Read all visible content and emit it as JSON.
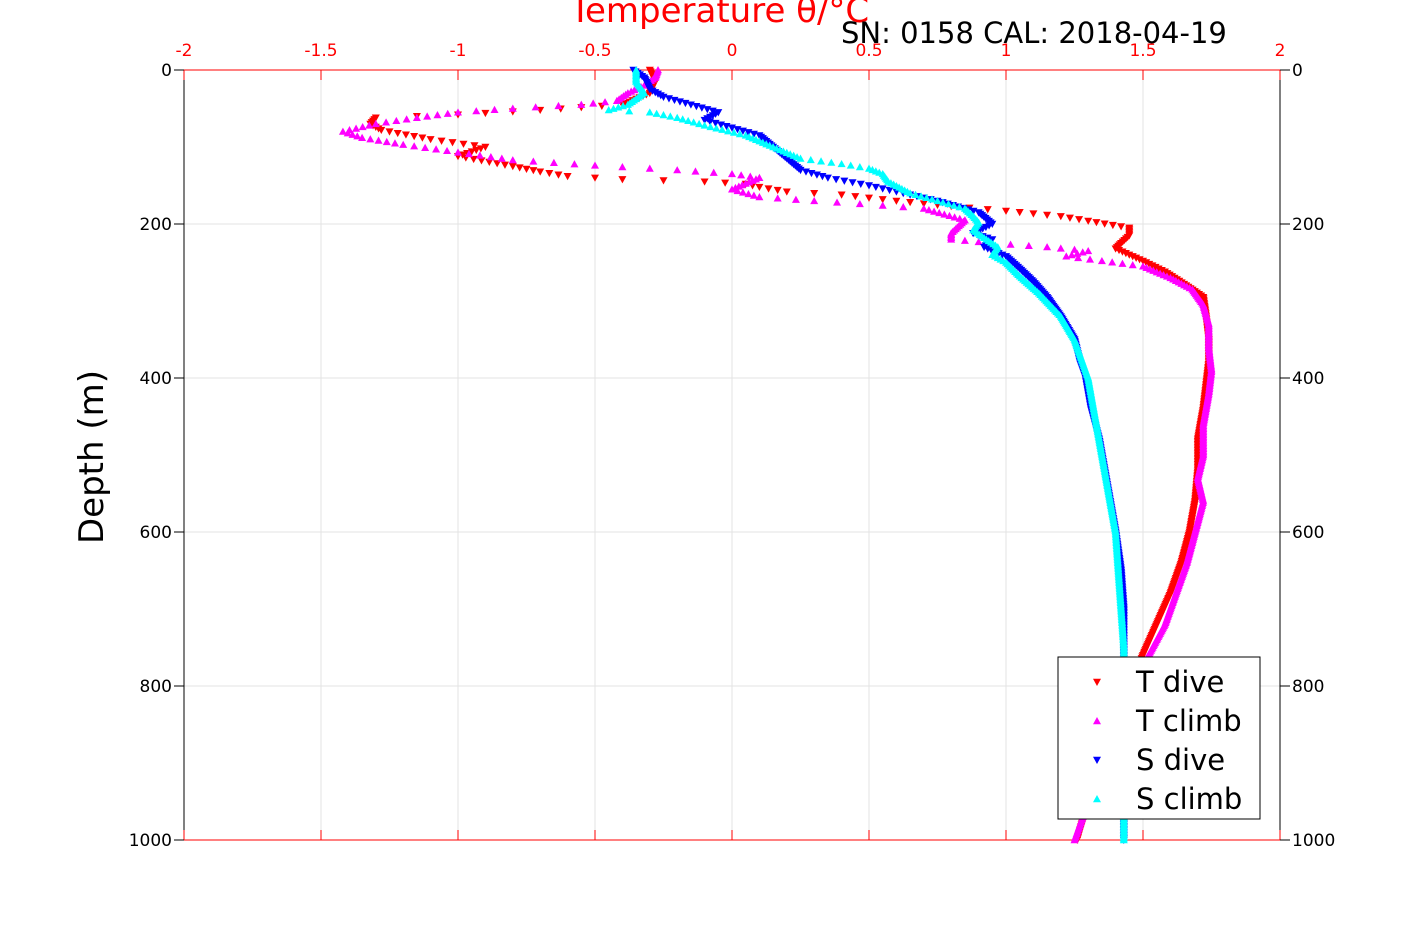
{
  "header": {
    "top_axis_label": "Temperature θ/°C",
    "sn_cal": "SN: 0158  CAL: 2018-04-19"
  },
  "chart_data": {
    "type": "scatter",
    "x_axis": {
      "label": "Temperature θ/°C",
      "position": "top",
      "lim": [
        -2,
        2
      ],
      "ticks": [
        -2,
        -1.5,
        -1,
        -0.5,
        0,
        0.5,
        1,
        1.5,
        2
      ],
      "tick_labels": [
        "-2",
        "-1.5",
        "-1",
        "-0.5",
        "0",
        "0.5",
        "1",
        "1.5",
        "2"
      ],
      "color": "#ff0000"
    },
    "y_axis": {
      "label": "Depth (m)",
      "lim": [
        0,
        1000
      ],
      "reversed": true,
      "ticks": [
        0,
        200,
        400,
        600,
        800,
        1000
      ],
      "tick_labels": [
        "0",
        "200",
        "400",
        "600",
        "800",
        "1000"
      ],
      "right_ticks": true
    },
    "grid": true,
    "legend": {
      "placement": "bottom-right"
    },
    "series": [
      {
        "name": "T dive",
        "color": "#ff0000",
        "marker": "triangle-down",
        "points": [
          [
            -0.3,
            0
          ],
          [
            -0.28,
            15
          ],
          [
            -0.3,
            30
          ],
          [
            -0.4,
            45
          ],
          [
            -0.7,
            52
          ],
          [
            -1.0,
            58
          ],
          [
            -1.3,
            62
          ],
          [
            -1.32,
            70
          ],
          [
            -1.28,
            78
          ],
          [
            -1.1,
            90
          ],
          [
            -0.9,
            100
          ],
          [
            -1.0,
            112
          ],
          [
            -0.8,
            125
          ],
          [
            -0.7,
            132
          ],
          [
            -0.6,
            138
          ],
          [
            -0.4,
            142
          ],
          [
            -0.1,
            145
          ],
          [
            0.05,
            148
          ],
          [
            0.1,
            152
          ],
          [
            0.2,
            158
          ],
          [
            0.4,
            162
          ],
          [
            0.6,
            170
          ],
          [
            0.8,
            177
          ],
          [
            1.0,
            183
          ],
          [
            1.2,
            190
          ],
          [
            1.3,
            196
          ],
          [
            1.45,
            205
          ],
          [
            1.45,
            215
          ],
          [
            1.42,
            225
          ],
          [
            1.4,
            232
          ],
          [
            1.5,
            248
          ],
          [
            1.58,
            262
          ],
          [
            1.65,
            278
          ],
          [
            1.72,
            295
          ],
          [
            1.73,
            320
          ],
          [
            1.74,
            350
          ],
          [
            1.74,
            380
          ],
          [
            1.73,
            410
          ],
          [
            1.72,
            440
          ],
          [
            1.7,
            480
          ],
          [
            1.7,
            520
          ],
          [
            1.69,
            560
          ],
          [
            1.67,
            600
          ],
          [
            1.64,
            640
          ],
          [
            1.6,
            680
          ],
          [
            1.55,
            720
          ],
          [
            1.5,
            760
          ],
          [
            1.45,
            800
          ],
          [
            1.4,
            850
          ],
          [
            1.35,
            900
          ],
          [
            1.3,
            950
          ],
          [
            1.26,
            1000
          ]
        ]
      },
      {
        "name": "T climb",
        "color": "#ff00ff",
        "marker": "triangle-up",
        "points": [
          [
            -0.27,
            0
          ],
          [
            -0.28,
            10
          ],
          [
            -0.32,
            20
          ],
          [
            -0.38,
            30
          ],
          [
            -0.42,
            40
          ],
          [
            -0.55,
            45
          ],
          [
            -0.8,
            50
          ],
          [
            -1.0,
            55
          ],
          [
            -1.15,
            62
          ],
          [
            -1.3,
            70
          ],
          [
            -1.42,
            80
          ],
          [
            -1.35,
            88
          ],
          [
            -1.2,
            97
          ],
          [
            -1.0,
            107
          ],
          [
            -0.8,
            117
          ],
          [
            -0.5,
            124
          ],
          [
            -0.2,
            130
          ],
          [
            0.0,
            135
          ],
          [
            0.1,
            140
          ],
          [
            0.0,
            155
          ],
          [
            0.1,
            165
          ],
          [
            0.3,
            170
          ],
          [
            0.55,
            176
          ],
          [
            0.7,
            180
          ],
          [
            0.85,
            195
          ],
          [
            0.8,
            212
          ],
          [
            0.8,
            220
          ],
          [
            0.95,
            225
          ],
          [
            1.15,
            230
          ],
          [
            1.3,
            235
          ],
          [
            1.22,
            242
          ],
          [
            1.35,
            248
          ],
          [
            1.5,
            255
          ],
          [
            1.6,
            270
          ],
          [
            1.68,
            285
          ],
          [
            1.72,
            305
          ],
          [
            1.74,
            330
          ],
          [
            1.74,
            360
          ],
          [
            1.75,
            390
          ],
          [
            1.74,
            420
          ],
          [
            1.72,
            460
          ],
          [
            1.72,
            500
          ],
          [
            1.7,
            530
          ],
          [
            1.72,
            560
          ],
          [
            1.69,
            600
          ],
          [
            1.66,
            640
          ],
          [
            1.62,
            680
          ],
          [
            1.58,
            720
          ],
          [
            1.52,
            760
          ],
          [
            1.45,
            800
          ],
          [
            1.4,
            850
          ],
          [
            1.35,
            900
          ],
          [
            1.3,
            950
          ],
          [
            1.25,
            1000
          ]
        ]
      },
      {
        "name": "S dive",
        "color": "#0000ff",
        "marker": "triangle-down",
        "points": [
          [
            -0.36,
            0
          ],
          [
            -0.32,
            10
          ],
          [
            -0.3,
            25
          ],
          [
            -0.25,
            35
          ],
          [
            -0.15,
            45
          ],
          [
            -0.05,
            55
          ],
          [
            -0.1,
            65
          ],
          [
            0.0,
            75
          ],
          [
            0.1,
            85
          ],
          [
            0.15,
            100
          ],
          [
            0.2,
            115
          ],
          [
            0.25,
            130
          ],
          [
            0.35,
            140
          ],
          [
            0.5,
            150
          ],
          [
            0.6,
            158
          ],
          [
            0.75,
            170
          ],
          [
            0.9,
            185
          ],
          [
            0.95,
            200
          ],
          [
            0.88,
            212
          ],
          [
            0.95,
            220
          ],
          [
            0.92,
            230
          ],
          [
            1.0,
            242
          ],
          [
            1.05,
            258
          ],
          [
            1.1,
            275
          ],
          [
            1.15,
            295
          ],
          [
            1.2,
            320
          ],
          [
            1.25,
            350
          ],
          [
            1.27,
            380
          ],
          [
            1.29,
            400
          ],
          [
            1.31,
            440
          ],
          [
            1.34,
            480
          ],
          [
            1.36,
            520
          ],
          [
            1.38,
            560
          ],
          [
            1.4,
            600
          ],
          [
            1.42,
            650
          ],
          [
            1.43,
            700
          ],
          [
            1.43,
            750
          ],
          [
            1.43,
            800
          ],
          [
            1.43,
            850
          ],
          [
            1.43,
            900
          ],
          [
            1.43,
            950
          ],
          [
            1.43,
            1000
          ]
        ]
      },
      {
        "name": "S climb",
        "color": "#00ffff",
        "marker": "triangle-up",
        "points": [
          [
            -0.35,
            0
          ],
          [
            -0.35,
            15
          ],
          [
            -0.32,
            30
          ],
          [
            -0.38,
            45
          ],
          [
            -0.45,
            52
          ],
          [
            -0.3,
            55
          ],
          [
            -0.2,
            62
          ],
          [
            -0.1,
            72
          ],
          [
            0.05,
            85
          ],
          [
            0.15,
            100
          ],
          [
            0.25,
            115
          ],
          [
            0.4,
            122
          ],
          [
            0.5,
            128
          ],
          [
            0.55,
            135
          ],
          [
            0.57,
            145
          ],
          [
            0.65,
            160
          ],
          [
            0.75,
            170
          ],
          [
            0.85,
            180
          ],
          [
            0.88,
            190
          ],
          [
            0.9,
            198
          ],
          [
            0.88,
            208
          ],
          [
            0.92,
            218
          ],
          [
            0.97,
            230
          ],
          [
            0.95,
            240
          ],
          [
            1.0,
            250
          ],
          [
            1.05,
            268
          ],
          [
            1.12,
            290
          ],
          [
            1.2,
            320
          ],
          [
            1.25,
            350
          ],
          [
            1.28,
            380
          ],
          [
            1.3,
            400
          ],
          [
            1.32,
            440
          ],
          [
            1.34,
            480
          ],
          [
            1.36,
            520
          ],
          [
            1.38,
            560
          ],
          [
            1.4,
            600
          ],
          [
            1.41,
            650
          ],
          [
            1.42,
            700
          ],
          [
            1.43,
            750
          ],
          [
            1.43,
            800
          ],
          [
            1.43,
            850
          ],
          [
            1.43,
            900
          ],
          [
            1.43,
            950
          ],
          [
            1.43,
            1000
          ]
        ]
      }
    ]
  }
}
